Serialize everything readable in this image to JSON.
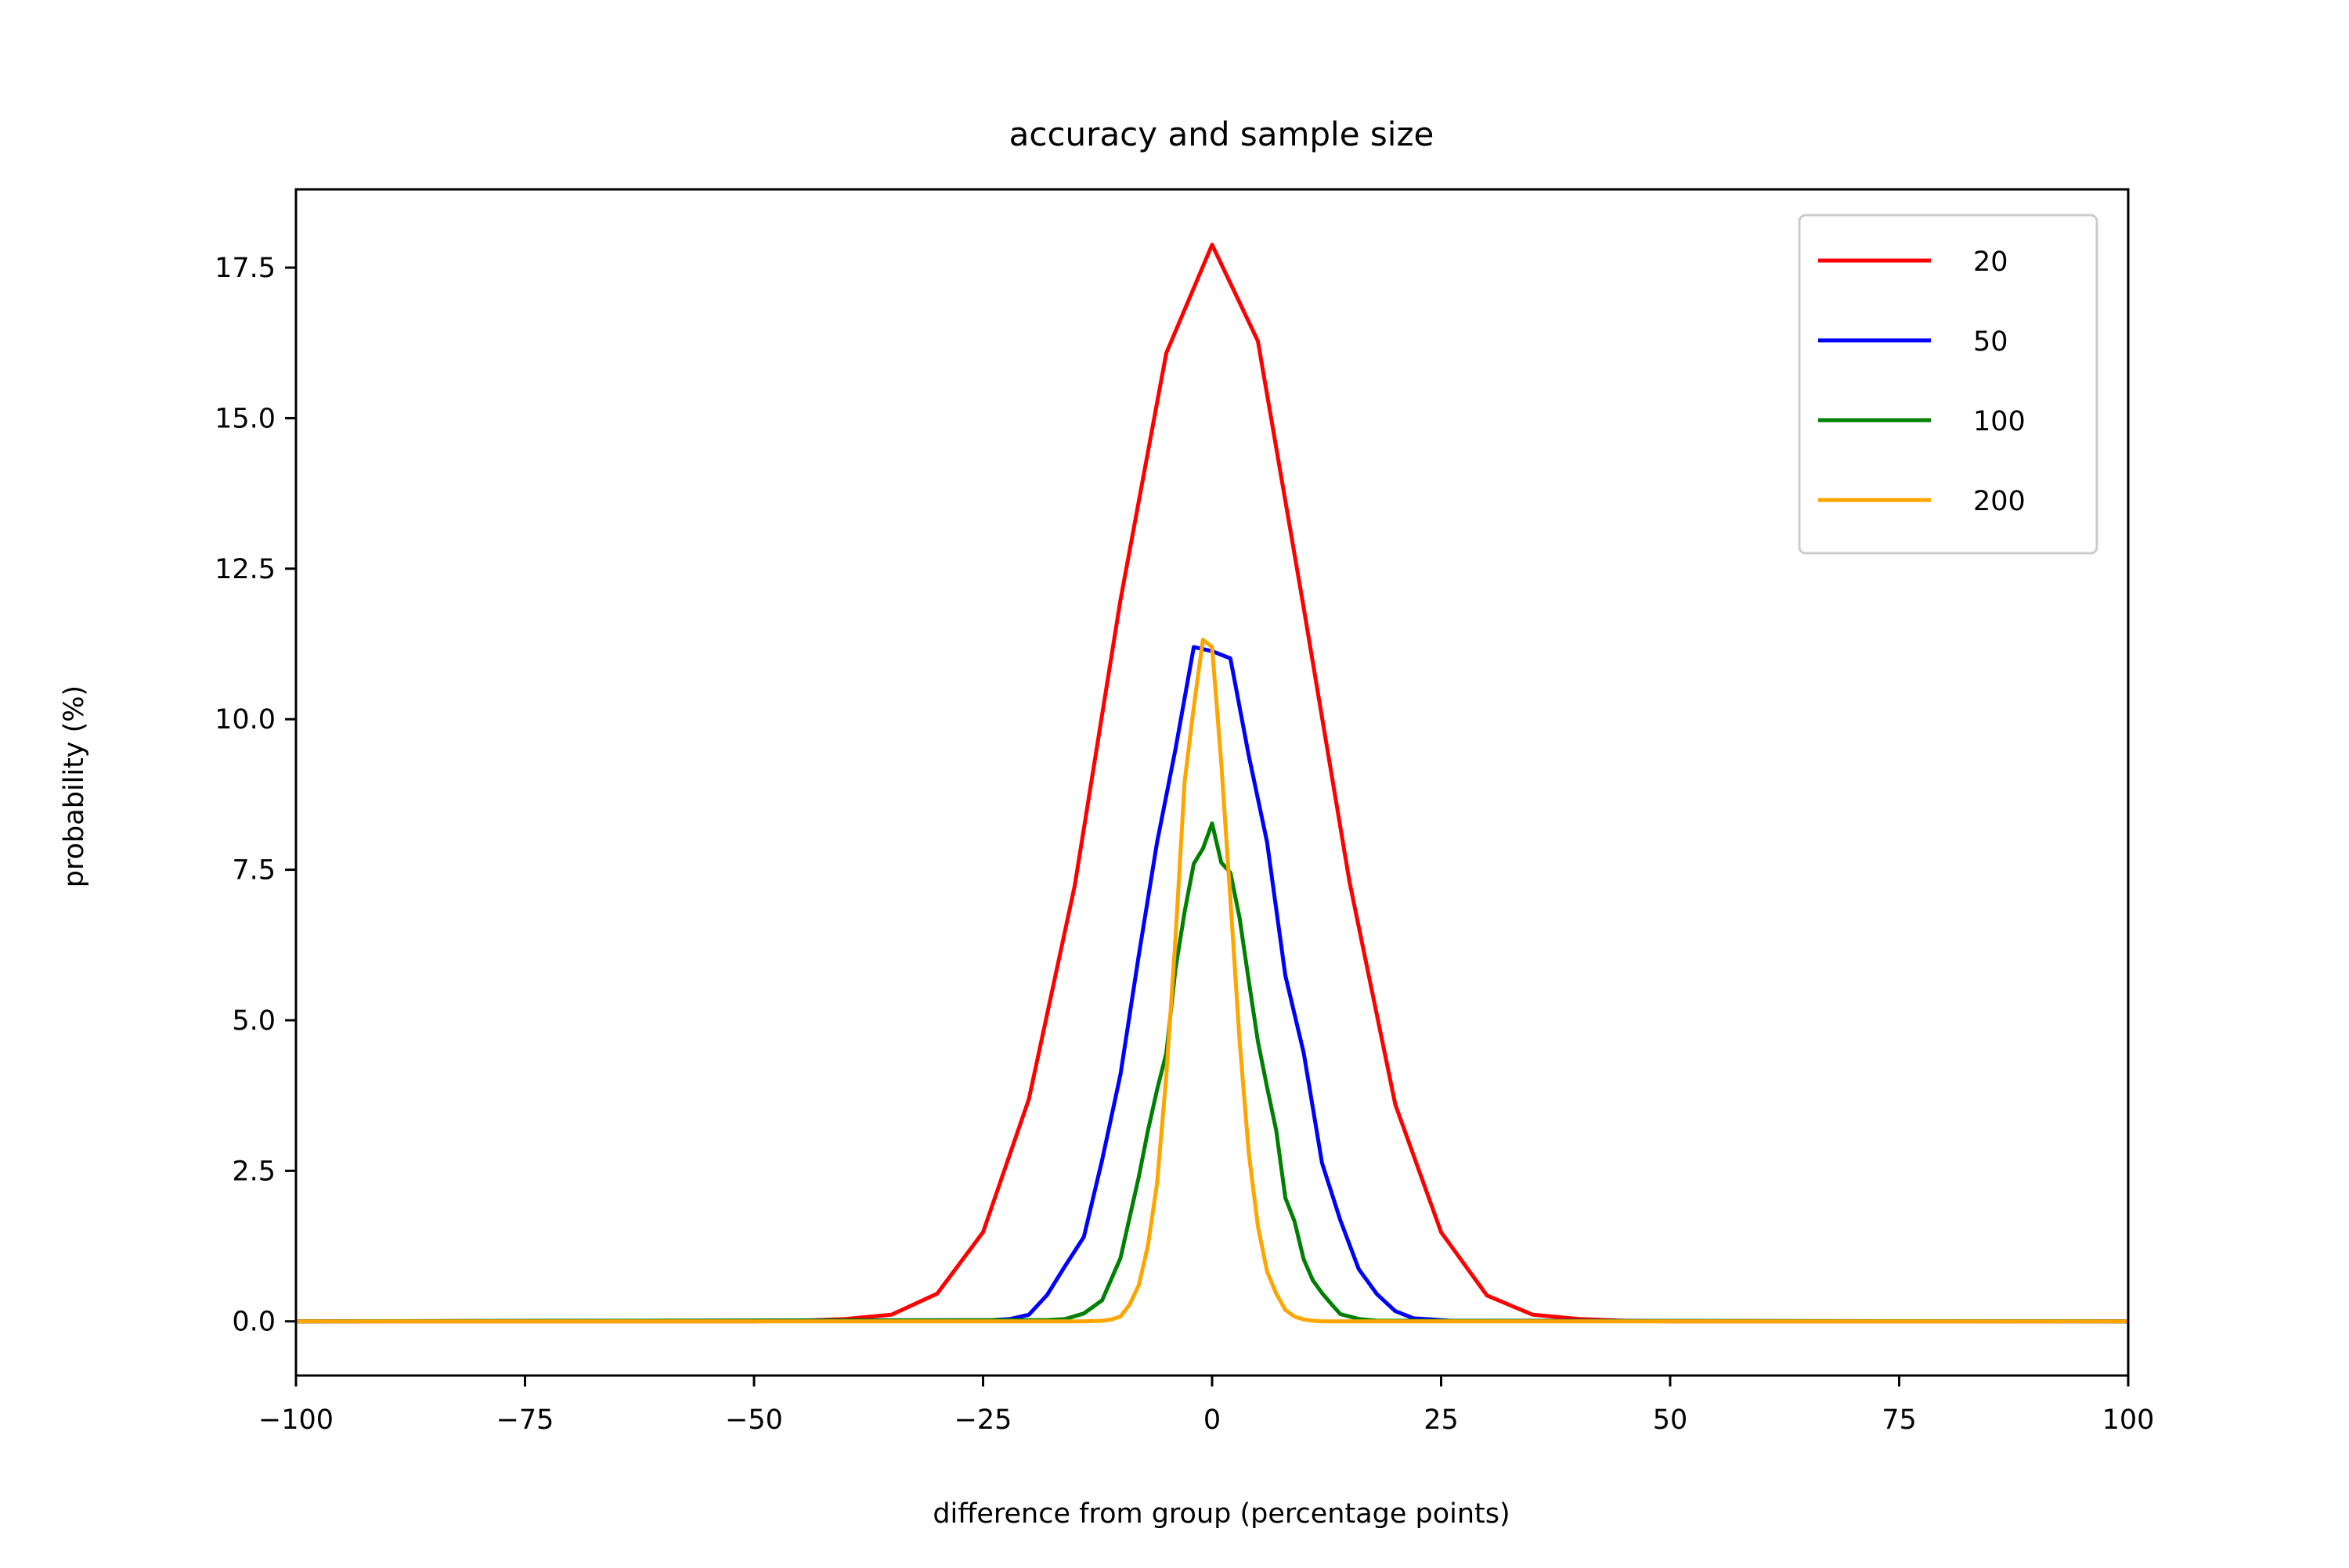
{
  "chart_data": {
    "type": "line",
    "title": "accuracy and sample size",
    "xlabel": "difference from group (percentage points)",
    "ylabel": "probability (%)",
    "xlim": [
      -100,
      100
    ],
    "ylim": [
      -0.9,
      18.8
    ],
    "xticks": [
      -100,
      -75,
      -50,
      -25,
      0,
      25,
      50,
      75,
      100
    ],
    "xtick_labels": [
      "−100",
      "−75",
      "−50",
      "−25",
      "0",
      "25",
      "50",
      "75",
      "100"
    ],
    "yticks": [
      0,
      2.5,
      5,
      7.5,
      10,
      12.5,
      15,
      17.5
    ],
    "ytick_labels": [
      "0.0",
      "2.5",
      "5.0",
      "7.5",
      "10.0",
      "12.5",
      "15.0",
      "17.5"
    ],
    "grid": false,
    "legend_position": "top-right",
    "series": [
      {
        "name": "20",
        "color": "#ff0000",
        "x": [
          -100,
          -50,
          -45,
          -40,
          -35,
          -30,
          -25,
          -20,
          -15,
          -10,
          -5,
          0,
          5,
          10,
          15,
          20,
          25,
          30,
          35,
          40,
          45,
          50,
          100
        ],
        "y": [
          0,
          0,
          0.01,
          0.04,
          0.11,
          0.46,
          1.48,
          3.69,
          7.23,
          11.98,
          16.08,
          17.88,
          16.28,
          11.85,
          7.3,
          3.6,
          1.48,
          0.43,
          0.11,
          0.04,
          0.01,
          0,
          0
        ]
      },
      {
        "name": "50",
        "color": "#0000ff",
        "x": [
          -100,
          -24,
          -22,
          -20,
          -18,
          -16,
          -14,
          -12,
          -10,
          -8,
          -6,
          -4,
          -2,
          0,
          2,
          4,
          6,
          8,
          10,
          12,
          14,
          16,
          18,
          20,
          22,
          24,
          26,
          100
        ],
        "y": [
          0,
          0.02,
          0.04,
          0.11,
          0.44,
          0.93,
          1.4,
          2.68,
          4.1,
          6.08,
          7.96,
          9.5,
          11.2,
          11.13,
          11.01,
          9.4,
          7.96,
          5.74,
          4.46,
          2.63,
          1.68,
          0.87,
          0.45,
          0.17,
          0.05,
          0.03,
          0.01,
          0
        ]
      },
      {
        "name": "100",
        "color": "#008000",
        "x": [
          -100,
          -18,
          -16,
          -14,
          -12,
          -10,
          -8,
          -7,
          -6,
          -5,
          -4,
          -3,
          -2,
          -1,
          0,
          1,
          2,
          3,
          4,
          5,
          6,
          7,
          8,
          9,
          10,
          11,
          12,
          13,
          14,
          16,
          18,
          100
        ],
        "y": [
          0,
          0.02,
          0.04,
          0.13,
          0.35,
          1.05,
          2.4,
          3.17,
          3.85,
          4.45,
          5.85,
          6.8,
          7.6,
          7.85,
          8.27,
          7.62,
          7.45,
          6.7,
          5.66,
          4.65,
          3.89,
          3.17,
          2.05,
          1.66,
          1.03,
          0.68,
          0.47,
          0.29,
          0.12,
          0.04,
          0.01,
          0
        ]
      },
      {
        "name": "200",
        "color": "#ffa500",
        "x": [
          -100,
          -14,
          -12,
          -11,
          -10,
          -9,
          -8,
          -7,
          -6,
          -5,
          -4,
          -3,
          -2,
          -1,
          0,
          1,
          2,
          3,
          4,
          5,
          6,
          7,
          8,
          9,
          10,
          11,
          12,
          13,
          14,
          100
        ],
        "y": [
          0,
          0,
          0.01,
          0.03,
          0.08,
          0.28,
          0.6,
          1.26,
          2.3,
          4.08,
          6.35,
          8.96,
          10.2,
          11.32,
          11.2,
          9.27,
          7.0,
          4.66,
          2.8,
          1.58,
          0.83,
          0.46,
          0.19,
          0.08,
          0.03,
          0.01,
          0,
          0,
          0,
          0
        ]
      }
    ]
  }
}
